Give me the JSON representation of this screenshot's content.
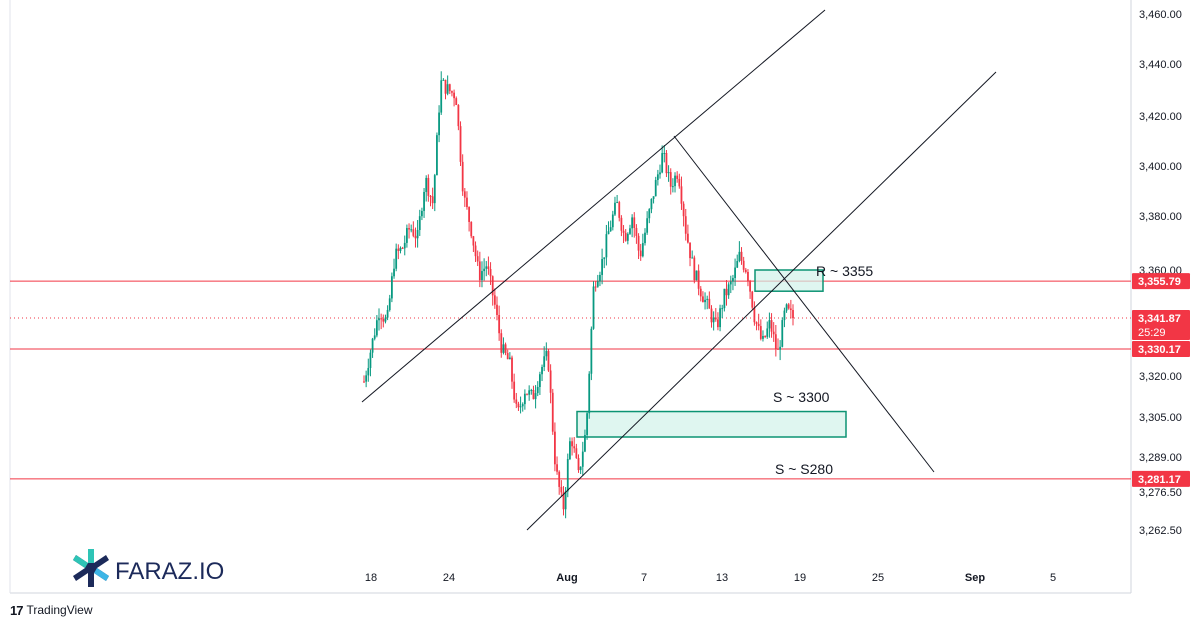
{
  "chart_data": {
    "type": "candlestick",
    "instrument_note": "",
    "y_axis": {
      "ticks": [
        3460.0,
        3440.0,
        3420.0,
        3400.0,
        3380.0,
        3360.0,
        3320.0,
        3305.0,
        3289.0,
        3276.5,
        3262.5
      ],
      "tick_labels": [
        "3,460.00",
        "3,440.00",
        "3,420.00",
        "3,400.00",
        "3,380.00",
        "3,360.00",
        "3,320.00",
        "3,305.00",
        "3,289.00",
        "3,276.50",
        "3,262.50"
      ],
      "ylim": [
        3250,
        3462
      ]
    },
    "x_axis": {
      "tick_labels": [
        "18",
        "24",
        "Aug",
        "7",
        "13",
        "19",
        "25",
        "Sep",
        "5"
      ],
      "bold_labels": [
        "Aug",
        "Sep"
      ]
    },
    "horizontal_levels": [
      {
        "label": "3,355.79",
        "value": 3355.79,
        "color": "#f23645"
      },
      {
        "label": "3,330.17",
        "value": 3330.17,
        "color": "#f23645"
      },
      {
        "label": "3,281.17",
        "value": 3281.17,
        "color": "#f23645"
      }
    ],
    "current_price": {
      "label": "3,341.87",
      "value": 3341.87,
      "countdown": "25:29",
      "color": "#f23645"
    },
    "annotations": [
      {
        "text": "R ~ 3355"
      },
      {
        "text": "S ~ 3300"
      },
      {
        "text": "S ~ S280"
      }
    ],
    "zones": [
      {
        "name": "resistance",
        "from": 3352,
        "to": 3360
      },
      {
        "name": "support",
        "from": 3297,
        "to": 3307
      }
    ],
    "price_path": [
      [
        0,
        3318
      ],
      [
        2,
        3345
      ],
      [
        3,
        3340
      ],
      [
        4,
        3365
      ],
      [
        5,
        3368
      ],
      [
        6,
        3376
      ],
      [
        7,
        3372
      ],
      [
        8,
        3395
      ],
      [
        9,
        3385
      ],
      [
        10,
        3433
      ],
      [
        11,
        3430
      ],
      [
        12,
        3428
      ],
      [
        13,
        3388
      ],
      [
        14,
        3375
      ],
      [
        15,
        3358
      ],
      [
        16,
        3362
      ],
      [
        17,
        3348
      ],
      [
        18,
        3330
      ],
      [
        19,
        3325
      ],
      [
        20,
        3305
      ],
      [
        21,
        3315
      ],
      [
        22,
        3312
      ],
      [
        23,
        3322
      ],
      [
        24,
        3328
      ],
      [
        25,
        3285
      ],
      [
        26,
        3270
      ],
      [
        27,
        3298
      ],
      [
        28,
        3282
      ],
      [
        29,
        3300
      ],
      [
        30,
        3355
      ],
      [
        31,
        3362
      ],
      [
        32,
        3375
      ],
      [
        33,
        3385
      ],
      [
        34,
        3372
      ],
      [
        35,
        3380
      ],
      [
        36,
        3365
      ],
      [
        37,
        3378
      ],
      [
        38,
        3392
      ],
      [
        39,
        3405
      ],
      [
        40,
        3392
      ],
      [
        41,
        3398
      ],
      [
        42,
        3375
      ],
      [
        43,
        3360
      ],
      [
        44,
        3352
      ],
      [
        45,
        3345
      ],
      [
        46,
        3338
      ],
      [
        47,
        3350
      ],
      [
        48,
        3355
      ],
      [
        49,
        3365
      ],
      [
        50,
        3360
      ],
      [
        51,
        3342
      ],
      [
        52,
        3332
      ],
      [
        53,
        3340
      ],
      [
        54,
        3328
      ],
      [
        55,
        3345
      ],
      [
        56,
        3342
      ]
    ],
    "colors": {
      "up": "#089981",
      "down": "#f23645",
      "zone_fill": "#d1f2ea",
      "zone_stroke": "#0c9373",
      "trendline": "#131722"
    }
  },
  "branding": {
    "watermark_text": "FARAZ.IO",
    "footer_text": "TradingView",
    "footer_logo": "17"
  }
}
